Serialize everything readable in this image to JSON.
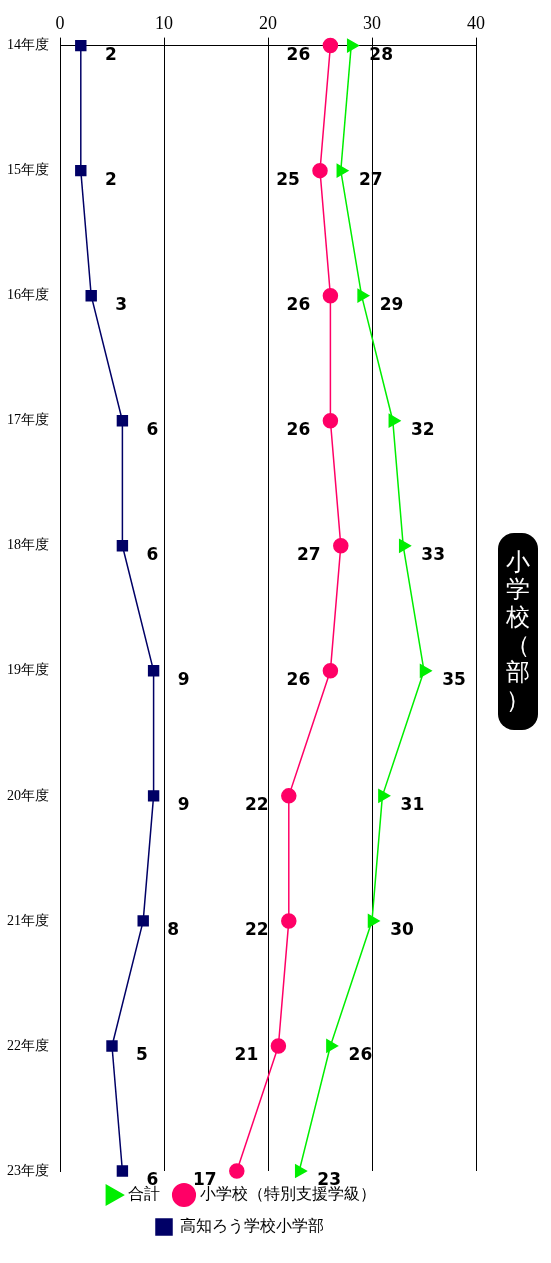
{
  "chart_data": {
    "type": "line",
    "title": "小学校（部）",
    "orientation": "horizontal",
    "categories": [
      "14年度",
      "15年度",
      "16年度",
      "17年度",
      "18年度",
      "19年度",
      "20年度",
      "21年度",
      "22年度",
      "23年度"
    ],
    "series": [
      {
        "name": "合計",
        "color": "#00ee00",
        "marker": "triangle",
        "values": [
          28,
          27,
          29,
          32,
          33,
          35,
          31,
          30,
          26,
          23
        ]
      },
      {
        "name": "小学校（特別支援学級）",
        "color": "#ff0066",
        "marker": "circle",
        "values": [
          26,
          25,
          26,
          26,
          27,
          26,
          22,
          22,
          21,
          17
        ]
      },
      {
        "name": "高知ろう学校小学部",
        "color": "#000066",
        "marker": "square",
        "values": [
          2,
          2,
          3,
          6,
          6,
          9,
          9,
          8,
          5,
          6
        ]
      }
    ],
    "xlim": [
      0,
      40
    ],
    "xticks": [
      0,
      10,
      20,
      30,
      40
    ],
    "grid": "x",
    "legend": "bottom",
    "data_labels": true
  }
}
